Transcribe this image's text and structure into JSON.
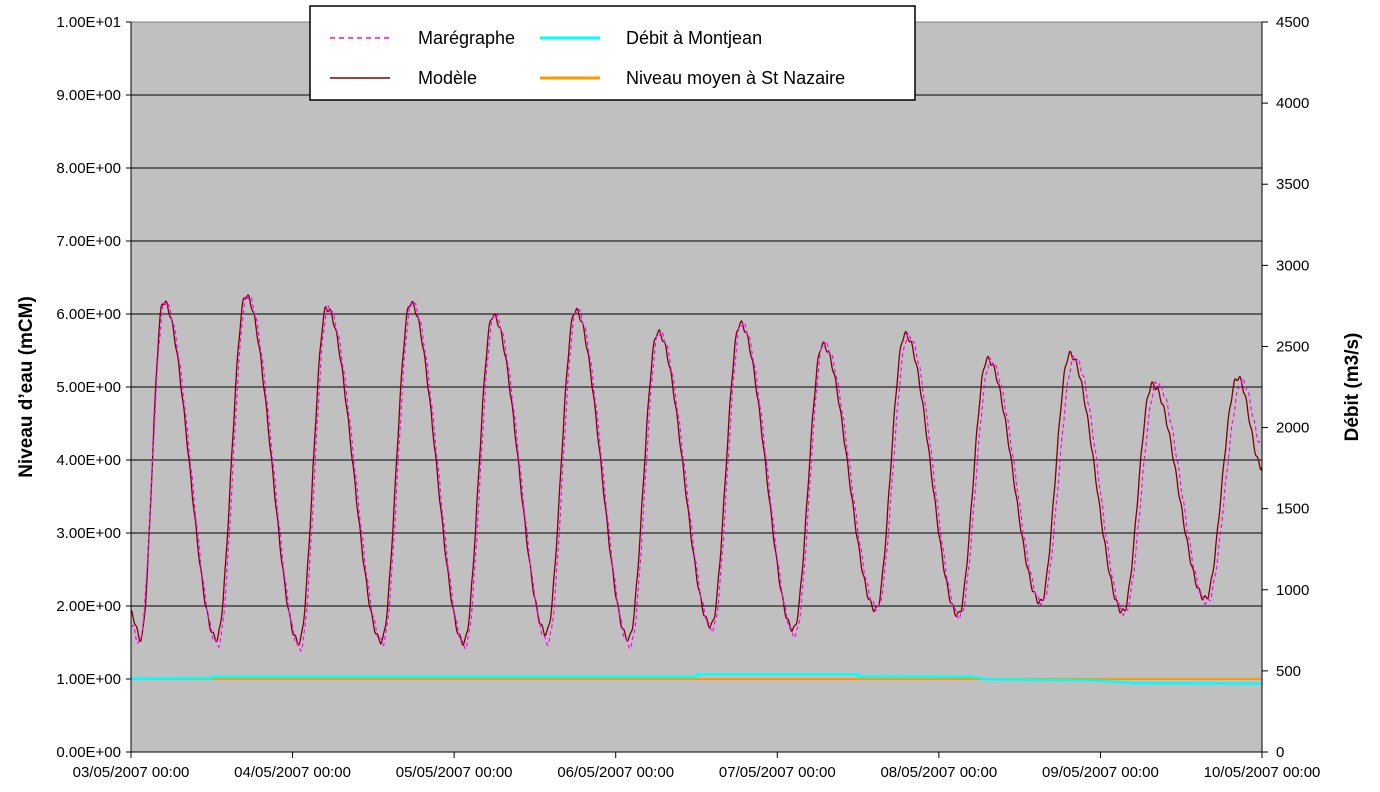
{
  "chart_data": {
    "type": "line",
    "x_ticks": [
      "03/05/2007 00:00",
      "04/05/2007 00:00",
      "05/05/2007 00:00",
      "06/05/2007 00:00",
      "07/05/2007 00:00",
      "08/05/2007 00:00",
      "09/05/2007 00:00",
      "10/05/2007 00:00"
    ],
    "xlim": [
      "03/05/2007 00:00",
      "10/05/2007 00:00"
    ],
    "ylabel": "Niveau d’eau (mCM)",
    "y2label": "Débit (m3/s)",
    "ylim": [
      0,
      10
    ],
    "y2lim": [
      0,
      4500
    ],
    "y_ticks": [
      "0.00E+00",
      "1.00E+00",
      "2.00E+00",
      "3.00E+00",
      "4.00E+00",
      "5.00E+00",
      "6.00E+00",
      "7.00E+00",
      "8.00E+00",
      "9.00E+00",
      "1.00E+01"
    ],
    "y2_ticks": [
      "0",
      "500",
      "1000",
      "1500",
      "2000",
      "2500",
      "3000",
      "3500",
      "4000",
      "4500"
    ],
    "grid": true,
    "plot_background": "#c0c0c0",
    "legend_position": "top-center",
    "legend": [
      {
        "name": "Marégraphe",
        "color": "#ff00ff",
        "style": "dashed"
      },
      {
        "name": "Débit à Montjean",
        "color": "#00ffff",
        "style": "solid"
      },
      {
        "name": "Modèle",
        "color": "#800000",
        "style": "solid"
      },
      {
        "name": "Niveau moyen à St Nazaire",
        "color": "#ff9900",
        "style": "solid"
      }
    ],
    "tide_extrema": {
      "description_units": "x in days since first tick label, y in mCM",
      "Modele": [
        [
          0.0,
          1.9
        ],
        [
          0.06,
          1.55
        ],
        [
          0.2,
          6.17
        ],
        [
          0.53,
          1.55
        ],
        [
          0.71,
          6.25
        ],
        [
          1.04,
          1.5
        ],
        [
          1.21,
          6.08
        ],
        [
          1.55,
          1.52
        ],
        [
          1.73,
          6.15
        ],
        [
          2.06,
          1.5
        ],
        [
          2.24,
          5.98
        ],
        [
          2.57,
          1.63
        ],
        [
          2.75,
          6.05
        ],
        [
          3.08,
          1.55
        ],
        [
          3.26,
          5.75
        ],
        [
          3.59,
          1.73
        ],
        [
          3.77,
          5.87
        ],
        [
          4.1,
          1.68
        ],
        [
          4.28,
          5.58
        ],
        [
          4.61,
          1.95
        ],
        [
          4.79,
          5.72
        ],
        [
          5.12,
          1.88
        ],
        [
          5.3,
          5.38
        ],
        [
          5.63,
          2.05
        ],
        [
          5.81,
          5.45
        ],
        [
          6.14,
          1.92
        ],
        [
          6.32,
          5.03
        ],
        [
          6.65,
          2.1
        ],
        [
          6.85,
          5.13
        ],
        [
          7.0,
          3.9
        ]
      ],
      "Maregraphe": [
        [
          0.0,
          1.75
        ],
        [
          0.05,
          1.5
        ],
        [
          0.21,
          6.15
        ],
        [
          0.54,
          1.47
        ],
        [
          0.72,
          6.25
        ],
        [
          1.05,
          1.42
        ],
        [
          1.22,
          6.08
        ],
        [
          1.56,
          1.5
        ],
        [
          1.74,
          6.15
        ],
        [
          2.07,
          1.45
        ],
        [
          2.25,
          5.98
        ],
        [
          2.58,
          1.5
        ],
        [
          2.76,
          6.05
        ],
        [
          3.09,
          1.45
        ],
        [
          3.27,
          5.75
        ],
        [
          3.6,
          1.68
        ],
        [
          3.78,
          5.87
        ],
        [
          4.11,
          1.6
        ],
        [
          4.29,
          5.6
        ],
        [
          4.62,
          1.97
        ],
        [
          4.81,
          5.7
        ],
        [
          5.13,
          1.85
        ],
        [
          5.32,
          5.35
        ],
        [
          5.64,
          2.05
        ],
        [
          5.84,
          5.4
        ],
        [
          6.15,
          1.9
        ],
        [
          6.35,
          5.05
        ],
        [
          6.66,
          2.05
        ],
        [
          6.88,
          5.08
        ],
        [
          7.0,
          4.2
        ]
      ]
    },
    "debit_montjean": {
      "description_units": "x in days since first tick label, y in m3/s",
      "points": [
        [
          0.0,
          452
        ],
        [
          0.5,
          455
        ],
        [
          0.5,
          463
        ],
        [
          3.5,
          463
        ],
        [
          3.5,
          478
        ],
        [
          4.5,
          478
        ],
        [
          4.5,
          466
        ],
        [
          5.2,
          464
        ],
        [
          5.3,
          448
        ],
        [
          6.0,
          440
        ],
        [
          6.2,
          425
        ],
        [
          7.0,
          422
        ]
      ]
    },
    "niveau_moyen_st_nazaire": {
      "description_units": "y in mCM",
      "value": 1.0
    }
  }
}
